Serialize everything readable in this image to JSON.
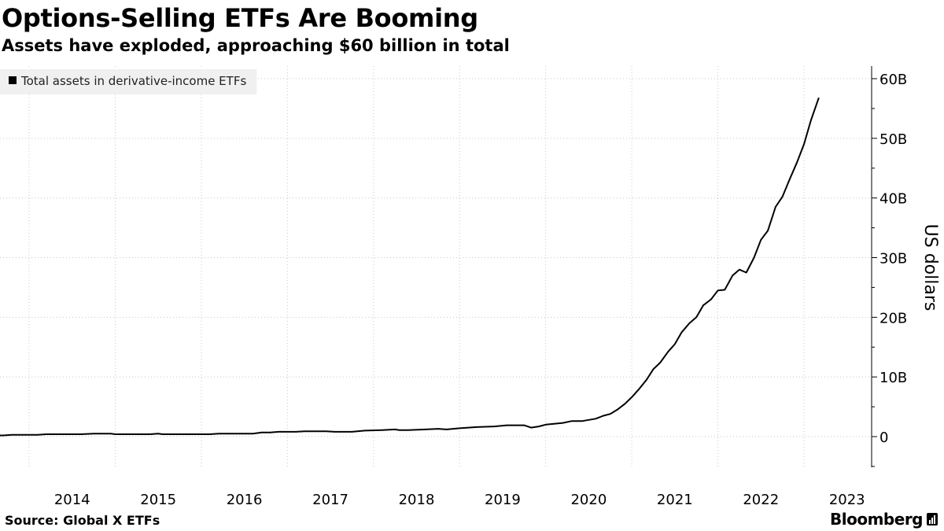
{
  "header": {
    "title": "Options-Selling ETFs Are Booming",
    "subtitle": "Assets have exploded, approaching $60 billion in total"
  },
  "footer": {
    "source": "Source: Global X ETFs",
    "brand": "Bloomberg"
  },
  "colors": {
    "line": "#000000",
    "grid": "#c8c8c8",
    "legend_bg": "#f0f0f0"
  },
  "chart_data": {
    "type": "line",
    "legend": {
      "placement": "top-left",
      "entries": [
        "Total assets in derivative-income ETFs"
      ]
    },
    "ylabel": "US dollars",
    "y_axis_side": "right",
    "ylim": [
      -5,
      62
    ],
    "yticks": [
      0,
      10,
      20,
      30,
      40,
      50,
      60
    ],
    "ytick_labels": [
      "0",
      "10B",
      "20B",
      "30B",
      "40B",
      "50B",
      "60B"
    ],
    "xlim": [
      2013.33,
      2023.5
    ],
    "xticks": [
      2014,
      2015,
      2016,
      2017,
      2018,
      2019,
      2020,
      2021,
      2022,
      2023
    ],
    "xtick_labels": [
      "2014",
      "2015",
      "2016",
      "2017",
      "2018",
      "2019",
      "2020",
      "2021",
      "2022",
      "2023"
    ],
    "grid": true,
    "series": [
      {
        "name": "Total assets in derivative-income ETFs",
        "unit": "billion USD",
        "points": [
          [
            2013.33,
            0.2
          ],
          [
            2013.7,
            0.2
          ],
          [
            2013.8,
            0.3
          ],
          [
            2014.1,
            0.3
          ],
          [
            2014.2,
            0.4
          ],
          [
            2014.6,
            0.4
          ],
          [
            2014.75,
            0.5
          ],
          [
            2014.95,
            0.5
          ],
          [
            2015.0,
            0.4
          ],
          [
            2015.4,
            0.4
          ],
          [
            2015.5,
            0.5
          ],
          [
            2015.55,
            0.4
          ],
          [
            2016.0,
            0.4
          ],
          [
            2016.1,
            0.4
          ],
          [
            2016.2,
            0.5
          ],
          [
            2016.6,
            0.5
          ],
          [
            2016.7,
            0.7
          ],
          [
            2016.8,
            0.7
          ],
          [
            2016.9,
            0.8
          ],
          [
            2017.1,
            0.8
          ],
          [
            2017.2,
            0.9
          ],
          [
            2017.45,
            0.9
          ],
          [
            2017.55,
            0.8
          ],
          [
            2017.75,
            0.8
          ],
          [
            2017.9,
            1.0
          ],
          [
            2018.1,
            1.1
          ],
          [
            2018.25,
            1.2
          ],
          [
            2018.3,
            1.1
          ],
          [
            2018.4,
            1.1
          ],
          [
            2018.6,
            1.2
          ],
          [
            2018.75,
            1.3
          ],
          [
            2018.85,
            1.2
          ],
          [
            2019.0,
            1.4
          ],
          [
            2019.2,
            1.6
          ],
          [
            2019.4,
            1.7
          ],
          [
            2019.55,
            1.9
          ],
          [
            2019.75,
            1.9
          ],
          [
            2019.83,
            1.5
          ],
          [
            2019.92,
            1.7
          ],
          [
            2020.0,
            2.0
          ],
          [
            2020.2,
            2.3
          ],
          [
            2020.3,
            2.6
          ],
          [
            2020.42,
            2.6
          ],
          [
            2020.58,
            3.0
          ],
          [
            2020.67,
            3.5
          ],
          [
            2020.75,
            3.8
          ],
          [
            2020.83,
            4.5
          ],
          [
            2020.92,
            5.5
          ],
          [
            2021.0,
            6.6
          ],
          [
            2021.08,
            7.9
          ],
          [
            2021.17,
            9.5
          ],
          [
            2021.25,
            11.3
          ],
          [
            2021.33,
            12.4
          ],
          [
            2021.42,
            14.2
          ],
          [
            2021.5,
            15.5
          ],
          [
            2021.58,
            17.5
          ],
          [
            2021.67,
            19.0
          ],
          [
            2021.75,
            20.0
          ],
          [
            2021.83,
            22.0
          ],
          [
            2021.92,
            23.0
          ],
          [
            2022.0,
            24.5
          ],
          [
            2022.08,
            24.6
          ],
          [
            2022.17,
            27.0
          ],
          [
            2022.25,
            28.0
          ],
          [
            2022.33,
            27.5
          ],
          [
            2022.42,
            30.0
          ],
          [
            2022.5,
            33.0
          ],
          [
            2022.58,
            34.5
          ],
          [
            2022.67,
            38.5
          ],
          [
            2022.75,
            40.2
          ],
          [
            2022.83,
            43.0
          ],
          [
            2022.92,
            46.0
          ],
          [
            2023.0,
            49.0
          ],
          [
            2023.08,
            53.0
          ],
          [
            2023.17,
            56.7
          ]
        ]
      }
    ]
  }
}
